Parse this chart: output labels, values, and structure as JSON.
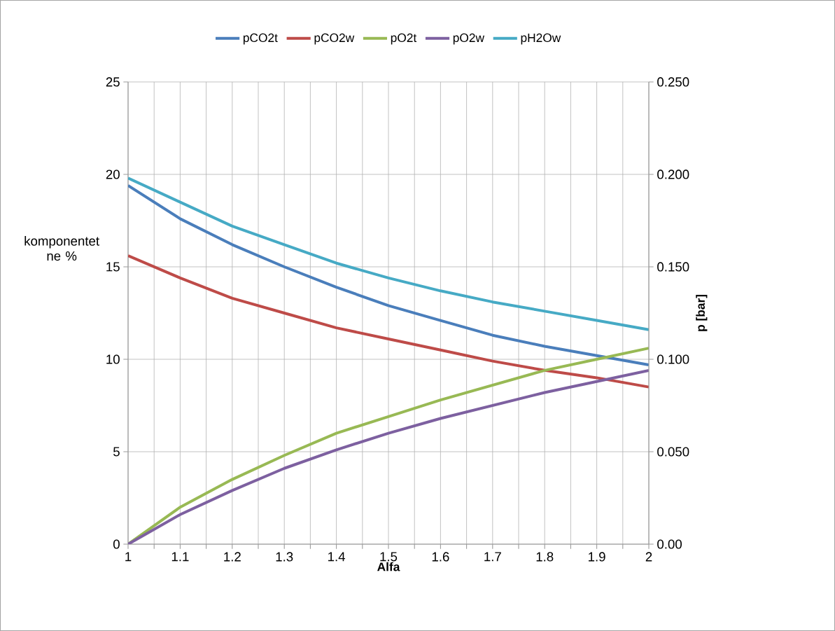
{
  "chart_data": {
    "type": "line",
    "xlabel": "Alfa",
    "ylabel": "komponentet ne %",
    "y2label": "p [bar]",
    "x": [
      1,
      1.1,
      1.2,
      1.3,
      1.4,
      1.5,
      1.6,
      1.7,
      1.8,
      1.9,
      2
    ],
    "series": [
      {
        "name": "pCO2t",
        "color": "#4a7ebb",
        "values": [
          19.4,
          17.6,
          16.2,
          15.0,
          13.9,
          12.9,
          12.1,
          11.3,
          10.7,
          10.2,
          9.7
        ]
      },
      {
        "name": "pCO2w",
        "color": "#be4b48",
        "values": [
          15.6,
          14.4,
          13.3,
          12.5,
          11.7,
          11.1,
          10.5,
          9.9,
          9.4,
          9.0,
          8.5
        ]
      },
      {
        "name": "pO2t",
        "color": "#98b954",
        "values": [
          0,
          2.0,
          3.5,
          4.8,
          6.0,
          6.9,
          7.8,
          8.6,
          9.4,
          10.0,
          10.6
        ]
      },
      {
        "name": "pO2w",
        "color": "#7d60a0",
        "values": [
          0,
          1.6,
          2.9,
          4.1,
          5.1,
          6.0,
          6.8,
          7.5,
          8.2,
          8.8,
          9.4
        ]
      },
      {
        "name": "pH2Ow",
        "color": "#46aac5",
        "values": [
          19.8,
          18.5,
          17.2,
          16.2,
          15.2,
          14.4,
          13.7,
          13.1,
          12.6,
          12.1,
          11.6
        ]
      }
    ],
    "xlim": [
      1,
      2
    ],
    "xticks": [
      1,
      {
        "value": 1.05,
        "label": null
      },
      1.1,
      {
        "value": 1.15,
        "label": null
      },
      1.2,
      {
        "value": 1.25,
        "label": null
      },
      1.3,
      {
        "value": 1.35,
        "label": null
      },
      1.4,
      {
        "value": 1.45,
        "label": null
      },
      1.5,
      {
        "value": 1.55,
        "label": null
      },
      1.6,
      {
        "value": 1.65,
        "label": null
      },
      1.7,
      {
        "value": 1.75,
        "label": null
      },
      1.8,
      {
        "value": 1.85,
        "label": null
      },
      1.9,
      {
        "value": 1.95,
        "label": null
      },
      2
    ],
    "ylim": [
      0,
      25
    ],
    "yticks": [
      0,
      5,
      10,
      15,
      20,
      25
    ],
    "y2lim": [
      0,
      0.25
    ],
    "y2ticks": [
      {
        "value": 0,
        "label": "0.00"
      },
      {
        "value": 0.05,
        "label": "0.050"
      },
      {
        "value": 0.1,
        "label": "0.100"
      },
      {
        "value": 0.15,
        "label": "0.150"
      },
      {
        "value": 0.2,
        "label": "0.200"
      },
      {
        "value": 0.25,
        "label": "0.250"
      }
    ],
    "grid": true,
    "legend": "top",
    "marker": "none",
    "line_style": "solid"
  }
}
